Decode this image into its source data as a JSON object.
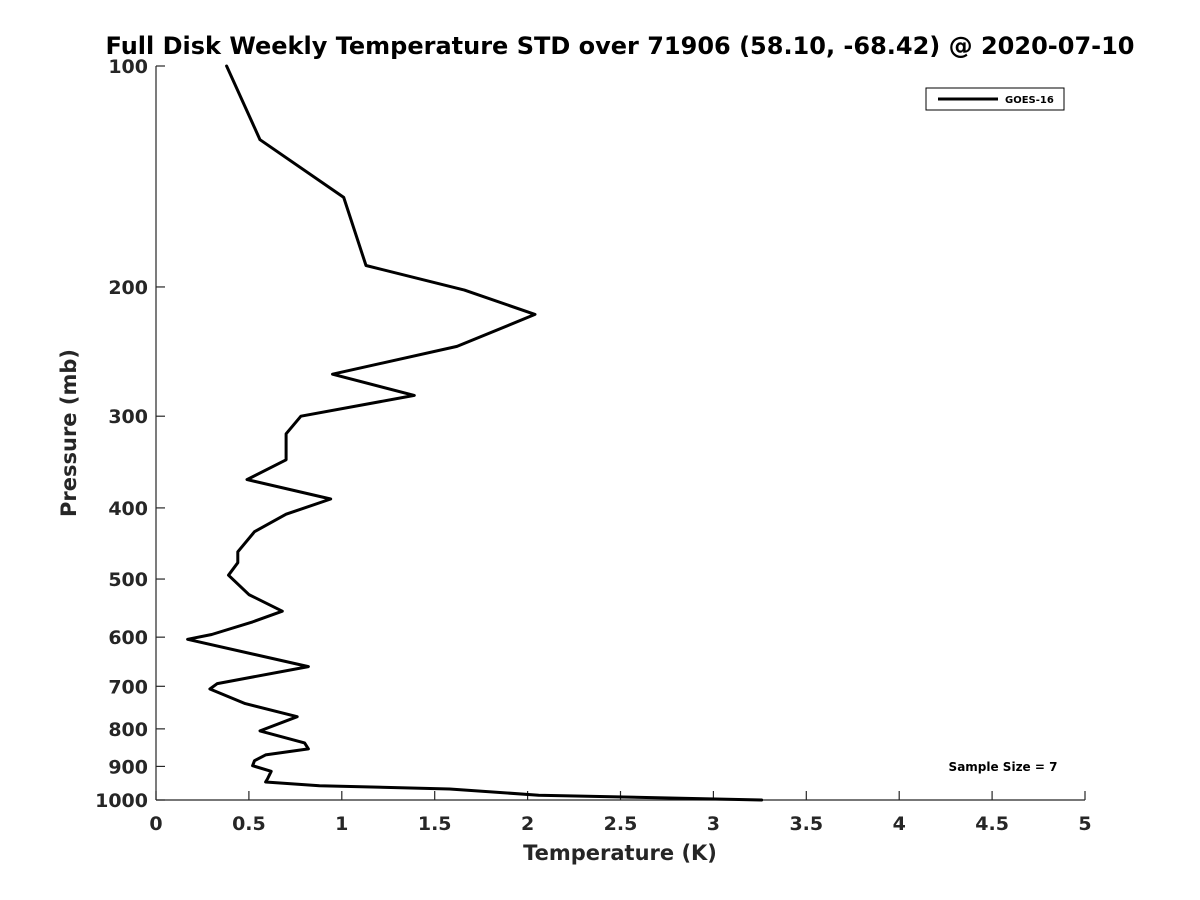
{
  "chart_data": {
    "type": "line",
    "title": "Full Disk Weekly Temperature STD over 71906 (58.10, -68.42) @ 2020-07-10",
    "xlabel": "Temperature (K)",
    "ylabel": "Pressure (mb)",
    "xlim": [
      0,
      5
    ],
    "ylim": [
      100,
      1000
    ],
    "y_scale": "log",
    "y_reversed": true,
    "x_ticks": [
      "0",
      "0.5",
      "1",
      "1.5",
      "2",
      "2.5",
      "3",
      "3.5",
      "4",
      "4.5",
      "5"
    ],
    "y_ticks": [
      "100",
      "200",
      "300",
      "400",
      "500",
      "600",
      "700",
      "800",
      "900",
      "1000"
    ],
    "grid": false,
    "legend_position": "top-right",
    "series": [
      {
        "name": "GOES-16",
        "color": "#000000",
        "points": [
          [
            0.38,
            100
          ],
          [
            0.56,
            126
          ],
          [
            1.01,
            151
          ],
          [
            1.13,
            187
          ],
          [
            1.66,
            202
          ],
          [
            2.04,
            218
          ],
          [
            1.62,
            241
          ],
          [
            0.95,
            263
          ],
          [
            1.39,
            281
          ],
          [
            0.78,
            300
          ],
          [
            0.7,
            317
          ],
          [
            0.7,
            344
          ],
          [
            0.49,
            366
          ],
          [
            0.94,
            389
          ],
          [
            0.7,
            408
          ],
          [
            0.53,
            431
          ],
          [
            0.44,
            459
          ],
          [
            0.44,
            475
          ],
          [
            0.39,
            494
          ],
          [
            0.5,
            525
          ],
          [
            0.68,
            553
          ],
          [
            0.52,
            572
          ],
          [
            0.3,
            595
          ],
          [
            0.17,
            604
          ],
          [
            0.82,
            658
          ],
          [
            0.33,
            694
          ],
          [
            0.29,
            706
          ],
          [
            0.48,
            739
          ],
          [
            0.76,
            770
          ],
          [
            0.56,
            805
          ],
          [
            0.8,
            836
          ],
          [
            0.82,
            852
          ],
          [
            0.59,
            868
          ],
          [
            0.53,
            884
          ],
          [
            0.52,
            898
          ],
          [
            0.62,
            914
          ],
          [
            0.6,
            936
          ],
          [
            0.59,
            945
          ],
          [
            0.88,
            956
          ],
          [
            1.58,
            966
          ],
          [
            2.06,
            985
          ],
          [
            3.26,
            1000
          ]
        ]
      }
    ],
    "annotations": [
      "Sample Size = 7"
    ]
  }
}
